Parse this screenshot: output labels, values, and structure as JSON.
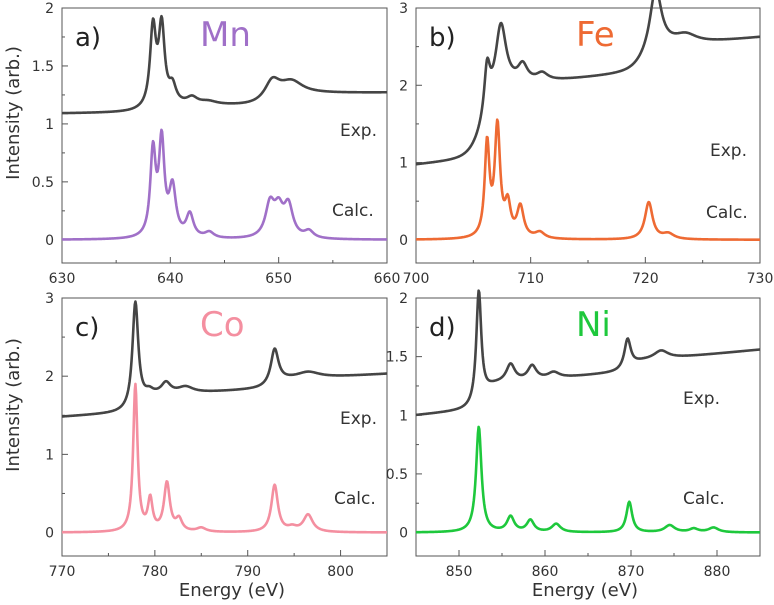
{
  "figure": {
    "ylabel": "Intensity (arb.)",
    "xlabel": "Energy (eV)"
  },
  "chart_data": [
    {
      "type": "line",
      "panel": "a)",
      "title": "Mn",
      "title_color": "#a070c8",
      "xlim": [
        630,
        660
      ],
      "ylim": [
        -0.2,
        2
      ],
      "xticks": [
        630,
        640,
        650,
        660
      ],
      "yticks": [
        0,
        0.5,
        1,
        1.5,
        2
      ],
      "ytick_labels": [
        "0",
        "0.5",
        "1",
        "1.5",
        "2"
      ],
      "series": [
        {
          "name": "Exp.",
          "color": "#454545",
          "baseline": 1.08,
          "start": 1.09,
          "end": 1.12,
          "steps": [
            {
              "e0": 638.6,
              "w": 0.8,
              "h": 0.05
            },
            {
              "e0": 649.0,
              "w": 0.6,
              "h": 0.1
            }
          ],
          "peaks": [
            {
              "e": 638.4,
              "h": 0.68,
              "w": 0.33
            },
            {
              "e": 639.2,
              "h": 0.67,
              "w": 0.33
            },
            {
              "e": 640.2,
              "h": 0.15,
              "w": 0.4
            },
            {
              "e": 642.0,
              "h": 0.06,
              "w": 0.6
            },
            {
              "e": 643.5,
              "h": 0.03,
              "w": 1.0
            },
            {
              "e": 649.4,
              "h": 0.14,
              "w": 0.8
            },
            {
              "e": 651.2,
              "h": 0.1,
              "w": 1.2
            }
          ],
          "label": "Exp."
        },
        {
          "name": "Calc.",
          "color": "#a070c8",
          "baseline": 0,
          "start": 0,
          "end": 0,
          "steps": [],
          "peaks": [
            {
              "e": 638.4,
              "h": 0.73,
              "w": 0.3
            },
            {
              "e": 639.2,
              "h": 0.8,
              "w": 0.3
            },
            {
              "e": 640.2,
              "h": 0.42,
              "w": 0.38
            },
            {
              "e": 641.8,
              "h": 0.2,
              "w": 0.4
            },
            {
              "e": 643.6,
              "h": 0.05,
              "w": 0.5
            },
            {
              "e": 649.2,
              "h": 0.28,
              "w": 0.5
            },
            {
              "e": 650.0,
              "h": 0.22,
              "w": 0.5
            },
            {
              "e": 650.9,
              "h": 0.27,
              "w": 0.5
            },
            {
              "e": 652.8,
              "h": 0.06,
              "w": 0.5
            }
          ],
          "label": "Calc."
        }
      ]
    },
    {
      "type": "line",
      "panel": "b)",
      "title": "Fe",
      "title_color": "#ee6a33",
      "xlim": [
        700,
        730
      ],
      "ylim": [
        -0.3,
        3
      ],
      "xticks": [
        700,
        710,
        720,
        730
      ],
      "yticks": [
        0,
        1,
        2,
        3
      ],
      "ytick_labels": [
        "0",
        "1",
        "2",
        "3"
      ],
      "series": [
        {
          "name": "Exp.",
          "color": "#454545",
          "baseline": 0.97,
          "start": 0.97,
          "end": 1.42,
          "steps": [
            {
              "e0": 706.0,
              "w": 0.6,
              "h": 0.9
            },
            {
              "e0": 720.0,
              "w": 0.6,
              "h": 0.3
            }
          ],
          "peaks": [
            {
              "e": 706.2,
              "h": 0.6,
              "w": 0.3
            },
            {
              "e": 707.4,
              "h": 0.85,
              "w": 0.55
            },
            {
              "e": 709.3,
              "h": 0.22,
              "w": 0.5
            },
            {
              "e": 711.0,
              "h": 0.1,
              "w": 0.6
            },
            {
              "e": 720.9,
              "h": 0.8,
              "w": 0.6
            },
            {
              "e": 723.5,
              "h": 0.12,
              "w": 1.2
            }
          ],
          "label": "Exp."
        },
        {
          "name": "Calc.",
          "color": "#ee6a33",
          "baseline": 0,
          "start": 0,
          "end": 0,
          "steps": [],
          "peaks": [
            {
              "e": 706.2,
              "h": 1.2,
              "w": 0.25
            },
            {
              "e": 707.1,
              "h": 1.42,
              "w": 0.28
            },
            {
              "e": 708.0,
              "h": 0.4,
              "w": 0.3
            },
            {
              "e": 709.1,
              "h": 0.4,
              "w": 0.35
            },
            {
              "e": 710.8,
              "h": 0.08,
              "w": 0.5
            },
            {
              "e": 720.3,
              "h": 0.48,
              "w": 0.4
            },
            {
              "e": 722.0,
              "h": 0.07,
              "w": 0.6
            }
          ],
          "label": "Calc."
        }
      ]
    },
    {
      "type": "line",
      "panel": "c)",
      "title": "Co",
      "title_color": "#f48fa0",
      "xlim": [
        770,
        805
      ],
      "ylim": [
        -0.3,
        3
      ],
      "xticks": [
        770,
        780,
        790,
        800
      ],
      "yticks": [
        0,
        1,
        2,
        3
      ],
      "ytick_labels": [
        "0",
        "1",
        "2",
        "3"
      ],
      "series": [
        {
          "name": "Exp.",
          "color": "#454545",
          "baseline": 1.48,
          "start": 1.48,
          "end": 1.73,
          "steps": [
            {
              "e0": 778.5,
              "w": 0.6,
              "h": 0.2
            },
            {
              "e0": 793.0,
              "w": 0.6,
              "h": 0.1
            }
          ],
          "peaks": [
            {
              "e": 777.9,
              "h": 1.35,
              "w": 0.38
            },
            {
              "e": 779.4,
              "h": 0.06,
              "w": 0.5
            },
            {
              "e": 781.2,
              "h": 0.14,
              "w": 0.6
            },
            {
              "e": 783.3,
              "h": 0.08,
              "w": 1.0
            },
            {
              "e": 792.9,
              "h": 0.45,
              "w": 0.5
            },
            {
              "e": 796.5,
              "h": 0.08,
              "w": 1.5
            }
          ],
          "label": "Exp."
        },
        {
          "name": "Calc.",
          "color": "#f48fa0",
          "baseline": 0,
          "start": 0,
          "end": 0,
          "steps": [],
          "peaks": [
            {
              "e": 777.9,
              "h": 1.88,
              "w": 0.28
            },
            {
              "e": 779.5,
              "h": 0.4,
              "w": 0.3
            },
            {
              "e": 781.3,
              "h": 0.62,
              "w": 0.38
            },
            {
              "e": 782.6,
              "h": 0.15,
              "w": 0.4
            },
            {
              "e": 785.0,
              "h": 0.05,
              "w": 0.6
            },
            {
              "e": 792.9,
              "h": 0.6,
              "w": 0.42
            },
            {
              "e": 794.8,
              "h": 0.05,
              "w": 0.6
            },
            {
              "e": 796.5,
              "h": 0.22,
              "w": 0.6
            }
          ],
          "label": "Calc."
        }
      ]
    },
    {
      "type": "line",
      "panel": "d)",
      "title": "Ni",
      "title_color": "#1ec83c",
      "xlim": [
        845,
        885
      ],
      "ylim": [
        -0.2,
        2
      ],
      "xticks": [
        850,
        860,
        870,
        880
      ],
      "yticks": [
        0,
        0.5,
        1,
        1.5,
        2
      ],
      "ytick_labels": [
        "0",
        "0.5",
        "1",
        "1.5",
        "2"
      ],
      "series": [
        {
          "name": "Exp.",
          "color": "#454545",
          "baseline": 1.0,
          "start": 1.0,
          "end": 1.28,
          "steps": [
            {
              "e0": 852.8,
              "w": 0.6,
              "h": 0.2
            },
            {
              "e0": 870.0,
              "w": 0.6,
              "h": 0.08
            }
          ],
          "peaks": [
            {
              "e": 852.3,
              "h": 0.95,
              "w": 0.35
            },
            {
              "e": 856.0,
              "h": 0.15,
              "w": 0.6
            },
            {
              "e": 858.5,
              "h": 0.12,
              "w": 0.6
            },
            {
              "e": 861.0,
              "h": 0.05,
              "w": 0.8
            },
            {
              "e": 869.6,
              "h": 0.25,
              "w": 0.45
            },
            {
              "e": 873.5,
              "h": 0.07,
              "w": 1.0
            }
          ],
          "label": "Exp."
        },
        {
          "name": "Calc.",
          "color": "#1ec83c",
          "baseline": 0,
          "start": 0,
          "end": 0,
          "steps": [],
          "peaks": [
            {
              "e": 852.3,
              "h": 0.9,
              "w": 0.38
            },
            {
              "e": 856.0,
              "h": 0.13,
              "w": 0.5
            },
            {
              "e": 858.3,
              "h": 0.1,
              "w": 0.5
            },
            {
              "e": 861.3,
              "h": 0.07,
              "w": 0.6
            },
            {
              "e": 869.8,
              "h": 0.26,
              "w": 0.4
            },
            {
              "e": 874.5,
              "h": 0.06,
              "w": 0.7
            },
            {
              "e": 877.3,
              "h": 0.03,
              "w": 0.6
            },
            {
              "e": 879.6,
              "h": 0.04,
              "w": 0.7
            }
          ],
          "label": "Calc."
        }
      ]
    }
  ]
}
